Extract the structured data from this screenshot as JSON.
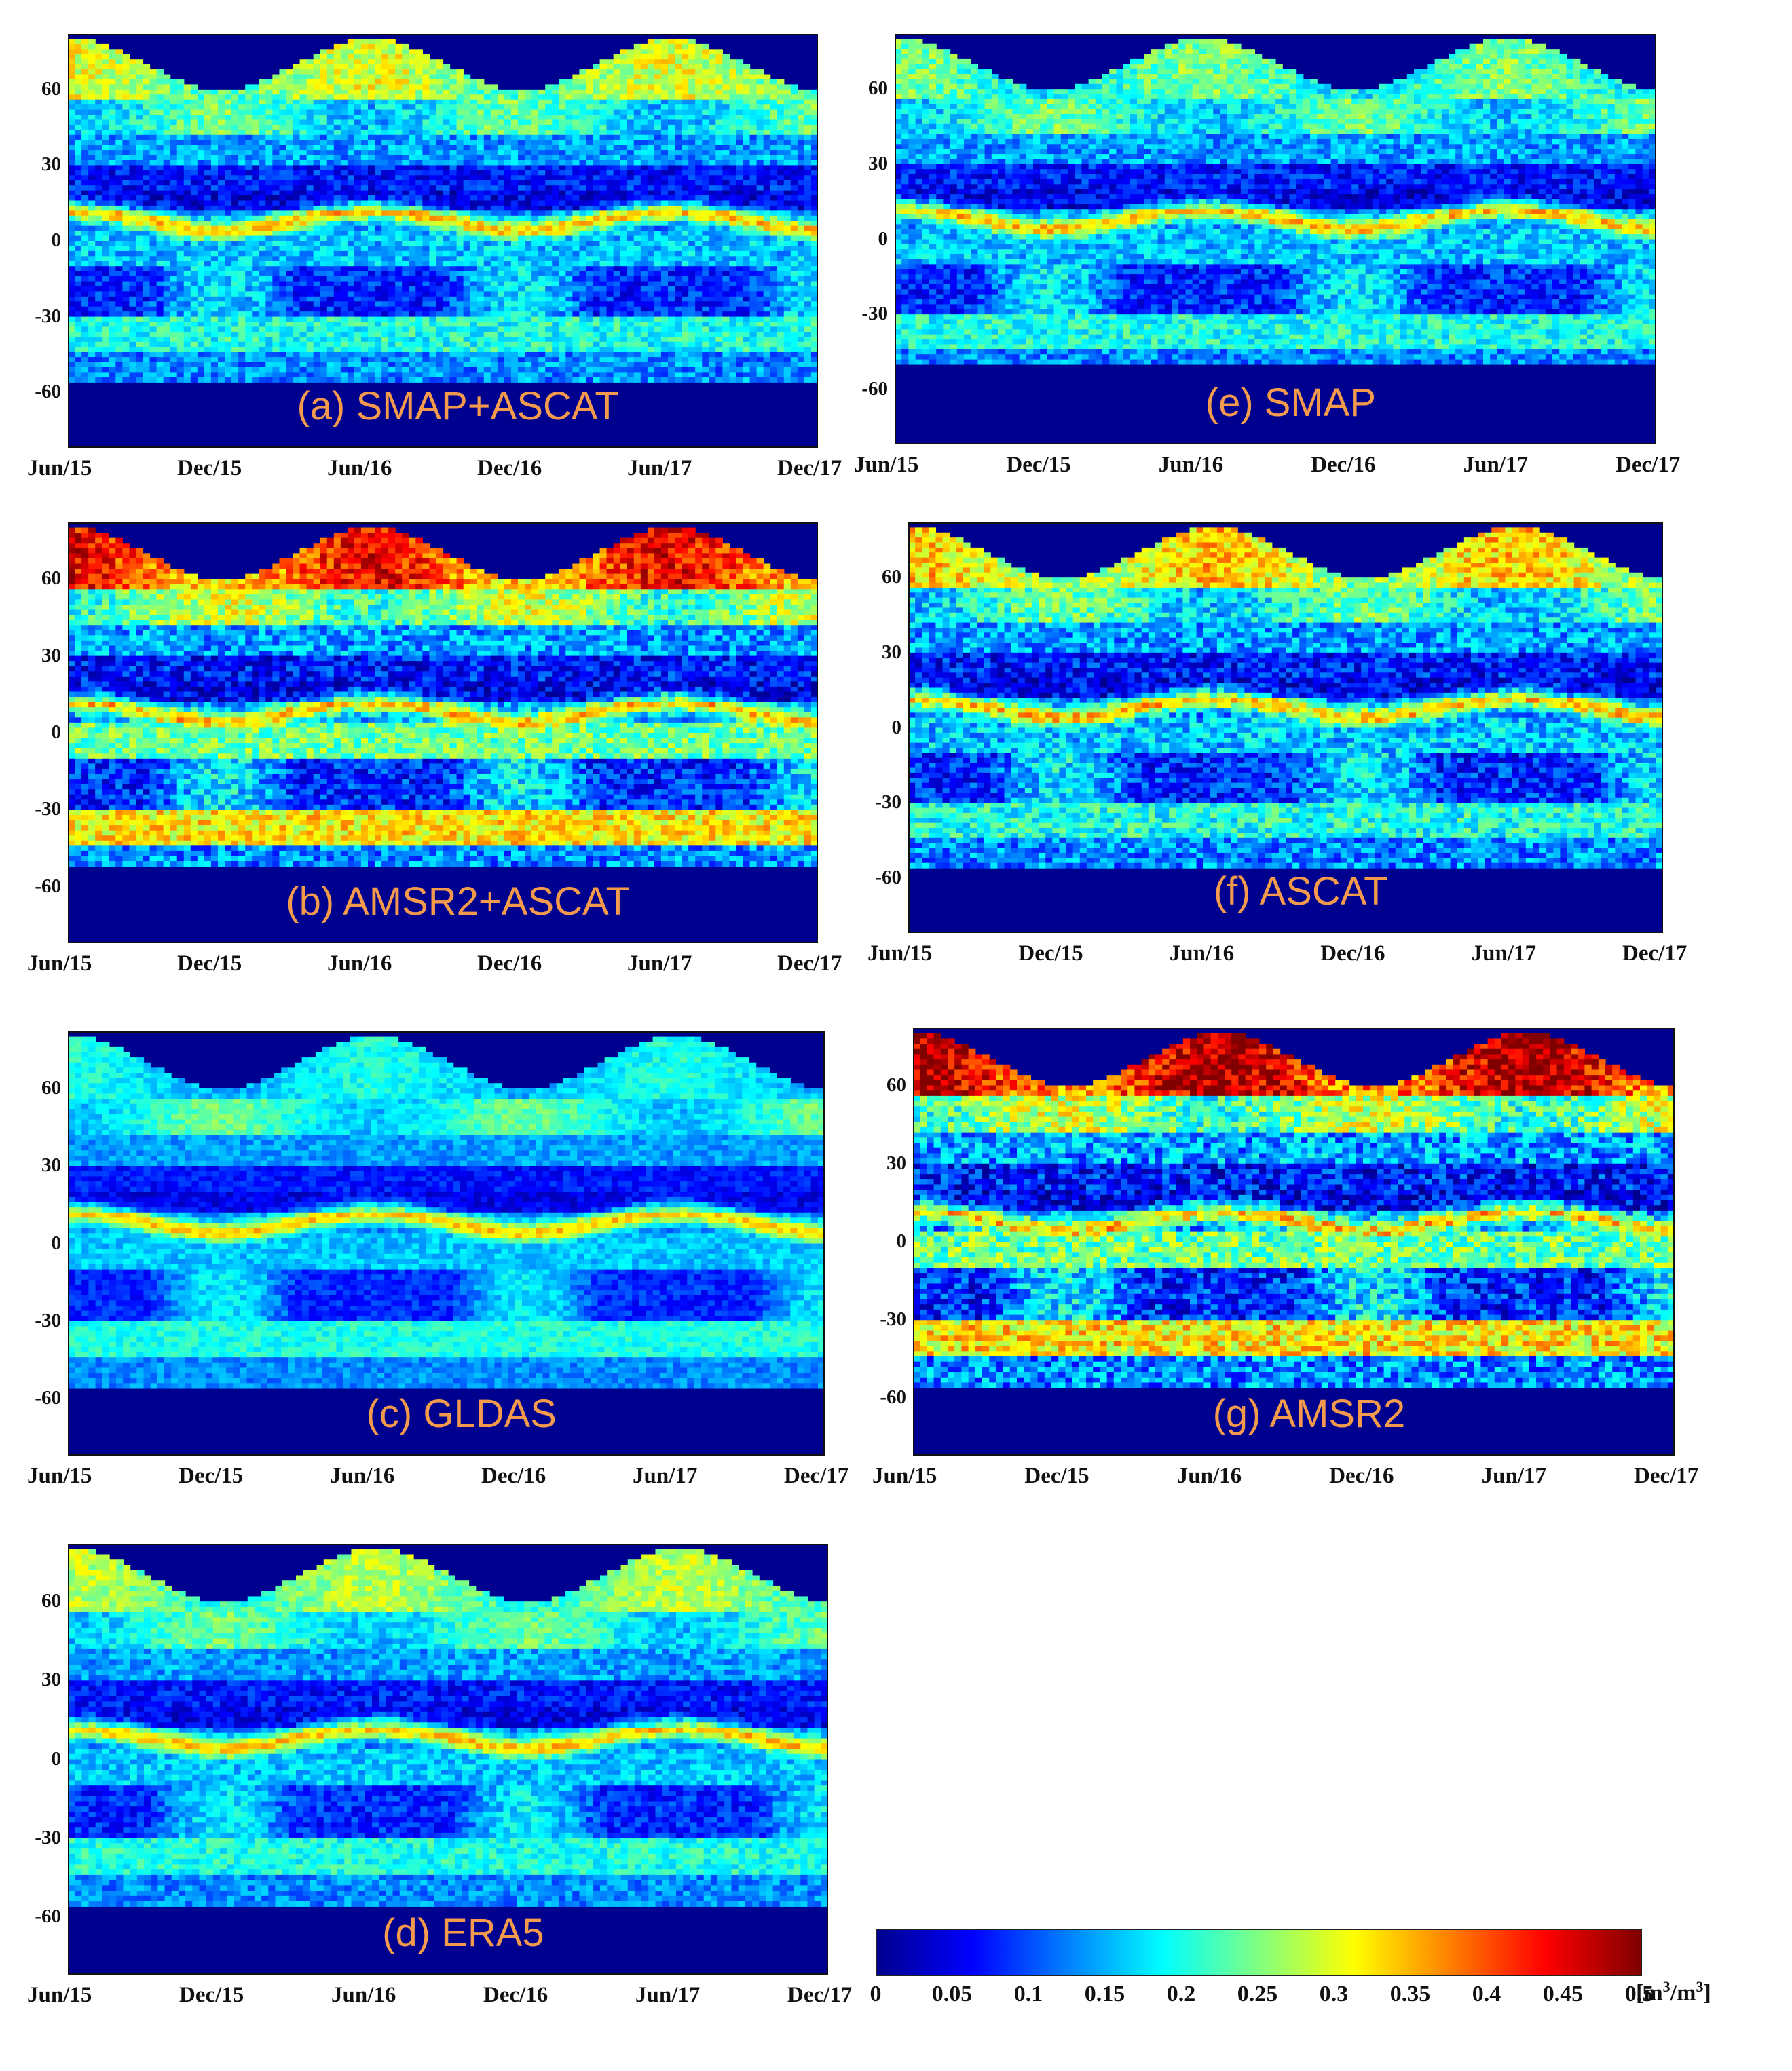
{
  "chart_data": {
    "type": "heatmap",
    "description_units": "soil moisture [m^3/m^3]",
    "x_ticks": [
      "Jun/15",
      "Dec/15",
      "Jun/16",
      "Dec/16",
      "Jun/17",
      "Dec/17"
    ],
    "y_ticks": [
      "60",
      "30",
      "0",
      "-30",
      "-60"
    ],
    "colorbar": {
      "min": 0,
      "max": 0.5,
      "ticks": [
        "0",
        "0.05",
        "0.1",
        "0.15",
        "0.2",
        "0.25",
        "0.3",
        "0.35",
        "0.4",
        "0.45",
        "0.5"
      ],
      "unit_base": "[m",
      "unit_sup1": "3",
      "unit_mid": "/m",
      "unit_sup2": "3",
      "unit_end": "]",
      "colors": [
        "#00008f",
        "#0000ff",
        "#0080ff",
        "#00ffff",
        "#80ff80",
        "#ffff00",
        "#ff8000",
        "#ff0000",
        "#800000"
      ]
    },
    "panels": [
      {
        "id": "a",
        "title": "(a) SMAP+ASCAT",
        "high_lat_wetness": 0.3,
        "south_cutoff_deg": -55,
        "noise": 0.05
      },
      {
        "id": "b",
        "title": "(b) AMSR2+ASCAT",
        "high_lat_wetness": 0.44,
        "south_cutoff_deg": -52,
        "noise": 0.06
      },
      {
        "id": "c",
        "title": "(c) GLDAS",
        "high_lat_wetness": 0.2,
        "south_cutoff_deg": -55,
        "noise": 0.03
      },
      {
        "id": "d",
        "title": "(d) ERA5",
        "high_lat_wetness": 0.28,
        "south_cutoff_deg": -55,
        "noise": 0.04
      },
      {
        "id": "e",
        "title": "(e) SMAP",
        "high_lat_wetness": 0.25,
        "south_cutoff_deg": -50,
        "noise": 0.05
      },
      {
        "id": "f",
        "title": "(f) ASCAT",
        "high_lat_wetness": 0.34,
        "south_cutoff_deg": -55,
        "noise": 0.06
      },
      {
        "id": "g",
        "title": "(g) AMSR2",
        "high_lat_wetness": 0.48,
        "south_cutoff_deg": -55,
        "noise": 0.07
      }
    ]
  }
}
